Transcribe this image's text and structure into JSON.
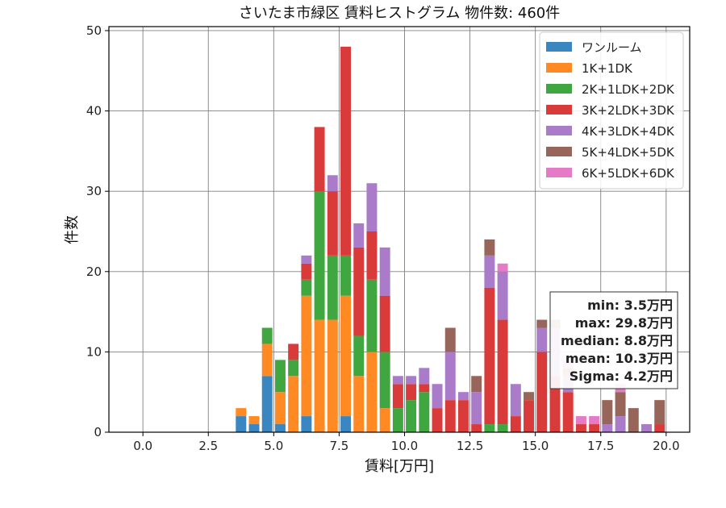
{
  "chart_data": {
    "type": "bar",
    "stacked": true,
    "title": "さいたま市緑区 賃料ヒストグラム  物件数: 460件",
    "xlabel": "賃料[万円]",
    "ylabel": "件数",
    "xlim": [
      -1.3,
      20.9
    ],
    "ylim": [
      0,
      50.5
    ],
    "xticks": [
      0,
      2.5,
      5,
      7.5,
      10,
      12.5,
      15,
      17.5,
      20
    ],
    "xtick_labels": [
      "0.0",
      "2.5",
      "5.0",
      "7.5",
      "10.0",
      "12.5",
      "15.0",
      "17.5",
      "20.0"
    ],
    "yticks": [
      0,
      10,
      20,
      30,
      40,
      50
    ],
    "ytick_labels": [
      "0",
      "10",
      "20",
      "30",
      "40",
      "50"
    ],
    "grid": true,
    "bin_width": 0.5,
    "bins": [
      3.5,
      4.0,
      4.5,
      5.0,
      5.5,
      6.0,
      6.5,
      7.0,
      7.5,
      8.0,
      8.5,
      9.0,
      9.5,
      10.0,
      10.5,
      11.0,
      11.5,
      12.0,
      12.5,
      13.0,
      13.5,
      14.0,
      14.5,
      15.0,
      15.5,
      16.0,
      16.5,
      17.0,
      17.5,
      18.0,
      18.5,
      19.0,
      19.5
    ],
    "series": [
      {
        "name": "ワンルーム",
        "color": "#3a86c0",
        "values": [
          2,
          1,
          7,
          1,
          0,
          2,
          0,
          0,
          2,
          0,
          0,
          0,
          0,
          0,
          0,
          0,
          0,
          0,
          0,
          0,
          0,
          0,
          0,
          0,
          0,
          0,
          0,
          0,
          0,
          0,
          0,
          0,
          0
        ]
      },
      {
        "name": "1K+1DK",
        "color": "#ff8a24",
        "values": [
          1,
          1,
          4,
          4,
          7,
          15,
          14,
          14,
          15,
          7,
          10,
          3,
          0,
          0,
          0,
          0,
          0,
          0,
          0,
          0,
          0,
          0,
          0,
          0,
          0,
          0,
          0,
          0,
          0,
          0,
          0,
          0,
          0
        ]
      },
      {
        "name": "2K+1LDK+2DK",
        "color": "#40a740",
        "values": [
          0,
          0,
          2,
          4,
          2,
          2,
          16,
          8,
          5,
          5,
          9,
          7,
          3,
          4,
          5,
          0,
          0,
          0,
          0,
          1,
          1,
          0,
          0,
          0,
          0,
          0,
          0,
          0,
          0,
          0,
          0,
          0,
          0
        ]
      },
      {
        "name": "3K+2LDK+3DK",
        "color": "#d93b3b",
        "values": [
          0,
          0,
          0,
          0,
          2,
          2,
          8,
          8,
          26,
          11,
          6,
          7,
          3,
          2,
          1,
          3,
          4,
          4,
          1,
          17,
          13,
          2,
          4,
          10,
          7,
          5,
          1,
          1,
          0,
          0,
          0,
          0,
          1
        ]
      },
      {
        "name": "4K+3LDK+4DK",
        "color": "#a97bc9",
        "values": [
          0,
          0,
          0,
          0,
          0,
          1,
          0,
          2,
          0,
          3,
          6,
          6,
          1,
          1,
          2,
          3,
          6,
          1,
          4,
          4,
          6,
          4,
          0,
          3,
          6,
          2,
          0,
          0,
          1,
          2,
          0,
          1,
          0
        ]
      },
      {
        "name": "5K+4LDK+5DK",
        "color": "#976559",
        "values": [
          0,
          0,
          0,
          0,
          0,
          0,
          0,
          0,
          0,
          0,
          0,
          0,
          0,
          0,
          0,
          0,
          3,
          0,
          2,
          2,
          0,
          0,
          1,
          1,
          1,
          1,
          0,
          0,
          3,
          3,
          3,
          0,
          3
        ]
      },
      {
        "name": "6K+5LDK+6DK",
        "color": "#e57ac6",
        "values": [
          0,
          0,
          0,
          0,
          0,
          0,
          0,
          0,
          0,
          0,
          0,
          0,
          0,
          0,
          0,
          0,
          0,
          0,
          0,
          0,
          1,
          0,
          0,
          0,
          0,
          1,
          1,
          1,
          0,
          1,
          0,
          0,
          0
        ]
      }
    ],
    "legend_position": "top-right",
    "stats_box": [
      "min: 3.5万円",
      "max: 29.8万円",
      "median: 8.8万円",
      "mean: 10.3万円",
      "Sigma: 4.2万円"
    ],
    "stats_position": "right"
  }
}
